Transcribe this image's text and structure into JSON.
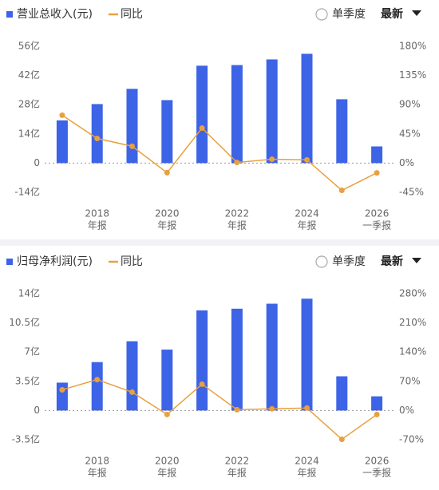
{
  "chart_data": [
    {
      "type": "combo",
      "toggle_label": "单季度",
      "sort_label": "最新",
      "categories": [
        null,
        "2018",
        null,
        "2020",
        null,
        "2022",
        null,
        "2024",
        null,
        "2026"
      ],
      "category_notes": [
        null,
        "年报",
        null,
        "年报",
        null,
        "年报",
        null,
        "年报",
        null,
        "一季报"
      ],
      "series": [
        {
          "name": "营业总收入(元)",
          "type": "bar",
          "color": "#3d63e6",
          "values": [
            20.5,
            28.3,
            35.6,
            30.2,
            46.7,
            47.0,
            49.7,
            52.4,
            30.6,
            8.0
          ]
        },
        {
          "name": "同比",
          "type": "line",
          "axis": "y2",
          "color": "#e8a040",
          "values": [
            73.8,
            38,
            26,
            -14.8,
            54,
            1,
            6,
            5,
            -42,
            -15
          ]
        }
      ],
      "ylim": [
        -14,
        56
      ],
      "yticks": [
        {
          "value": -14,
          "label": "-14亿"
        },
        0,
        {
          "value": 14,
          "label": "14亿"
        },
        {
          "value": 28,
          "label": "28亿"
        },
        {
          "value": 42,
          "label": "42亿"
        },
        {
          "value": 56,
          "label": "56亿"
        }
      ],
      "y2lim": [
        -45,
        180
      ],
      "y2ticks": [
        {
          "value": -45,
          "label": "-45%"
        },
        {
          "value": 0,
          "label": "0%"
        },
        {
          "value": 45,
          "label": "45%"
        },
        {
          "value": 90,
          "label": "90%"
        },
        {
          "value": 135,
          "label": "135%"
        },
        {
          "value": 180,
          "label": "180%"
        }
      ]
    },
    {
      "type": "combo",
      "toggle_label": "单季度",
      "sort_label": "最新",
      "categories": [
        null,
        "2018",
        null,
        "2020",
        null,
        "2022",
        null,
        "2024",
        null,
        "2026"
      ],
      "category_notes": [
        null,
        "年报",
        null,
        "年报",
        null,
        "年报",
        null,
        "年报",
        null,
        "一季报"
      ],
      "series": [
        {
          "name": "归母净利润(元)",
          "type": "bar",
          "color": "#3d63e6",
          "values": [
            3.34,
            5.8,
            8.3,
            7.3,
            12.0,
            12.2,
            12.8,
            13.4,
            4.1,
            1.7
          ]
        },
        {
          "name": "同比",
          "type": "line",
          "axis": "y2",
          "color": "#e8a040",
          "values": [
            49.6,
            74,
            44,
            -9.5,
            63,
            2,
            4,
            6,
            -69,
            -9.5
          ]
        }
      ],
      "ylim": [
        -3.5,
        14
      ],
      "yticks": [
        {
          "value": -3.5,
          "label": "-3.5亿"
        },
        0,
        {
          "value": 3.5,
          "label": "3.5亿"
        },
        {
          "value": 7,
          "label": "7亿"
        },
        {
          "value": 10.5,
          "label": "10.5亿"
        },
        {
          "value": 14,
          "label": "14亿"
        }
      ],
      "y2lim": [
        -70,
        280
      ],
      "y2ticks": [
        {
          "value": -70,
          "label": "-70%"
        },
        {
          "value": 0,
          "label": "0%"
        },
        {
          "value": 70,
          "label": "70%"
        },
        {
          "value": 140,
          "label": "140%"
        },
        {
          "value": 210,
          "label": "210%"
        },
        {
          "value": 280,
          "label": "280%"
        }
      ]
    }
  ]
}
